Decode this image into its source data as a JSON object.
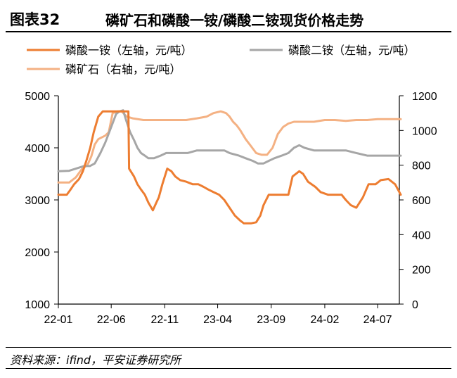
{
  "header": {
    "figure_number": "图表32",
    "title": "磷矿石和磷酸一铵/磷酸二铵现货价格走势"
  },
  "source": "资料来源：ifind，平安证券研究所",
  "chart_data": {
    "type": "line",
    "title": "磷矿石和磷酸一铵/磷酸二铵现货价格走势",
    "xlabel": "",
    "ylabel_left": "",
    "ylabel_right": "",
    "x_ticks": [
      "22-01",
      "22-06",
      "22-11",
      "23-04",
      "23-09",
      "24-02",
      "24-07"
    ],
    "x_range": [
      "2022-01",
      "2024-09"
    ],
    "y_left": {
      "lim": [
        1000,
        5000
      ],
      "ticks": [
        1000,
        2000,
        3000,
        4000,
        5000
      ]
    },
    "y_right": {
      "lim": [
        0,
        1200
      ],
      "ticks": [
        0,
        200,
        400,
        600,
        800,
        1000,
        1200
      ]
    },
    "grid": false,
    "legend": "top",
    "series": [
      {
        "name": "磷酸一铵（左轴，元/吨）",
        "axis": "left",
        "color": "#ED7D31",
        "x": [
          "2022-01-01",
          "2022-01-25",
          "2022-02-05",
          "2022-02-15",
          "2022-03-01",
          "2022-03-12",
          "2022-03-22",
          "2022-04-02",
          "2022-04-12",
          "2022-04-25",
          "2022-05-08",
          "2022-05-20",
          "2022-05-24",
          "2022-06-05",
          "2022-06-20",
          "2022-07-01",
          "2022-07-10",
          "2022-07-20",
          "2022-07-22",
          "2022-08-05",
          "2022-08-15",
          "2022-08-25",
          "2022-09-05",
          "2022-09-15",
          "2022-09-28",
          "2022-10-08",
          "2022-10-15",
          "2022-10-25",
          "2022-11-08",
          "2022-11-20",
          "2022-12-01",
          "2022-12-15",
          "2023-01-01",
          "2023-01-20",
          "2023-02-05",
          "2023-02-20",
          "2023-03-05",
          "2023-03-20",
          "2023-04-05",
          "2023-04-20",
          "2023-05-05",
          "2023-05-20",
          "2023-06-05",
          "2023-06-15",
          "2023-07-05",
          "2023-07-20",
          "2023-08-01",
          "2023-08-10",
          "2023-08-25",
          "2023-09-10",
          "2023-10-01",
          "2023-10-20",
          "2023-11-01",
          "2023-11-20",
          "2023-12-01",
          "2023-12-15",
          "2024-01-05",
          "2024-01-20",
          "2024-02-10",
          "2024-03-01",
          "2024-03-20",
          "2024-04-01",
          "2024-04-15",
          "2024-05-01",
          "2024-05-20",
          "2024-06-05",
          "2024-06-25",
          "2024-07-10",
          "2024-08-01",
          "2024-08-20",
          "2024-09-05"
        ],
        "values": [
          3100,
          3100,
          3200,
          3300,
          3400,
          3550,
          3750,
          4000,
          4300,
          4600,
          4700,
          4700,
          4700,
          4700,
          4700,
          4700,
          4700,
          4700,
          3600,
          3450,
          3300,
          3200,
          3100,
          2950,
          2800,
          2950,
          3050,
          3300,
          3600,
          3550,
          3450,
          3380,
          3350,
          3300,
          3300,
          3250,
          3200,
          3150,
          3100,
          3000,
          2850,
          2700,
          2600,
          2550,
          2550,
          2570,
          2700,
          2900,
          3100,
          3100,
          3100,
          3100,
          3450,
          3550,
          3500,
          3350,
          3250,
          3150,
          3100,
          3100,
          3100,
          3000,
          2900,
          2850,
          3050,
          3300,
          3300,
          3380,
          3400,
          3300,
          3100
        ]
      },
      {
        "name": "磷酸二铵（左轴，元/吨）",
        "axis": "left",
        "color": "#A6A6A6",
        "x": [
          "2022-01-01",
          "2022-02-01",
          "2022-02-20",
          "2022-03-15",
          "2022-04-01",
          "2022-04-15",
          "2022-05-01",
          "2022-05-15",
          "2022-06-01",
          "2022-06-15",
          "2022-06-25",
          "2022-07-05",
          "2022-07-15",
          "2022-07-25",
          "2022-08-05",
          "2022-08-15",
          "2022-08-25",
          "2022-09-05",
          "2022-09-15",
          "2022-10-01",
          "2022-10-20",
          "2022-11-05",
          "2022-11-20",
          "2022-12-05",
          "2022-12-20",
          "2023-01-05",
          "2023-02-01",
          "2023-03-01",
          "2023-04-01",
          "2023-04-20",
          "2023-05-05",
          "2023-06-01",
          "2023-06-20",
          "2023-07-10",
          "2023-07-25",
          "2023-08-10",
          "2023-08-25",
          "2023-09-10",
          "2023-10-01",
          "2023-10-20",
          "2023-11-05",
          "2023-11-20",
          "2023-12-05",
          "2024-01-01",
          "2024-02-01",
          "2024-03-01",
          "2024-04-01",
          "2024-05-01",
          "2024-06-01",
          "2024-07-01",
          "2024-08-01",
          "2024-09-05"
        ],
        "values": [
          3550,
          3560,
          3600,
          3650,
          3650,
          3700,
          3900,
          4100,
          4400,
          4650,
          4700,
          4720,
          4500,
          4300,
          4150,
          4000,
          3900,
          3850,
          3800,
          3800,
          3850,
          3900,
          3900,
          3900,
          3900,
          3900,
          3950,
          3950,
          3950,
          3950,
          3900,
          3850,
          3800,
          3750,
          3700,
          3700,
          3750,
          3800,
          3850,
          3900,
          4000,
          4050,
          4000,
          3950,
          3950,
          3950,
          3950,
          3900,
          3850,
          3850,
          3850,
          3850
        ]
      },
      {
        "name": "磷矿石（右轴，元/吨）",
        "axis": "right",
        "color": "#F4B183",
        "x": [
          "2022-01-01",
          "2022-02-01",
          "2022-02-20",
          "2022-03-10",
          "2022-03-25",
          "2022-04-05",
          "2022-04-15",
          "2022-04-25",
          "2022-05-05",
          "2022-05-15",
          "2022-05-25",
          "2022-06-05",
          "2022-06-20",
          "2022-07-01",
          "2022-07-15",
          "2022-08-01",
          "2022-09-01",
          "2022-10-01",
          "2022-11-01",
          "2022-12-01",
          "2023-01-01",
          "2023-02-01",
          "2023-03-01",
          "2023-03-20",
          "2023-04-10",
          "2023-04-25",
          "2023-05-05",
          "2023-05-15",
          "2023-05-25",
          "2023-06-05",
          "2023-06-20",
          "2023-07-05",
          "2023-07-20",
          "2023-08-05",
          "2023-08-20",
          "2023-09-05",
          "2023-09-20",
          "2023-10-05",
          "2023-10-20",
          "2023-11-05",
          "2023-12-01",
          "2024-01-01",
          "2024-02-01",
          "2024-03-01",
          "2024-04-01",
          "2024-05-01",
          "2024-06-01",
          "2024-07-01",
          "2024-08-01",
          "2024-09-05"
        ],
        "values": [
          700,
          700,
          730,
          780,
          800,
          850,
          920,
          950,
          960,
          970,
          990,
          1100,
          1110,
          1110,
          1080,
          1070,
          1060,
          1060,
          1060,
          1060,
          1060,
          1070,
          1080,
          1100,
          1110,
          1100,
          1080,
          1050,
          1030,
          1000,
          950,
          910,
          870,
          860,
          860,
          900,
          980,
          1020,
          1040,
          1050,
          1050,
          1050,
          1060,
          1060,
          1055,
          1060,
          1060,
          1065,
          1065,
          1065
        ]
      }
    ]
  }
}
